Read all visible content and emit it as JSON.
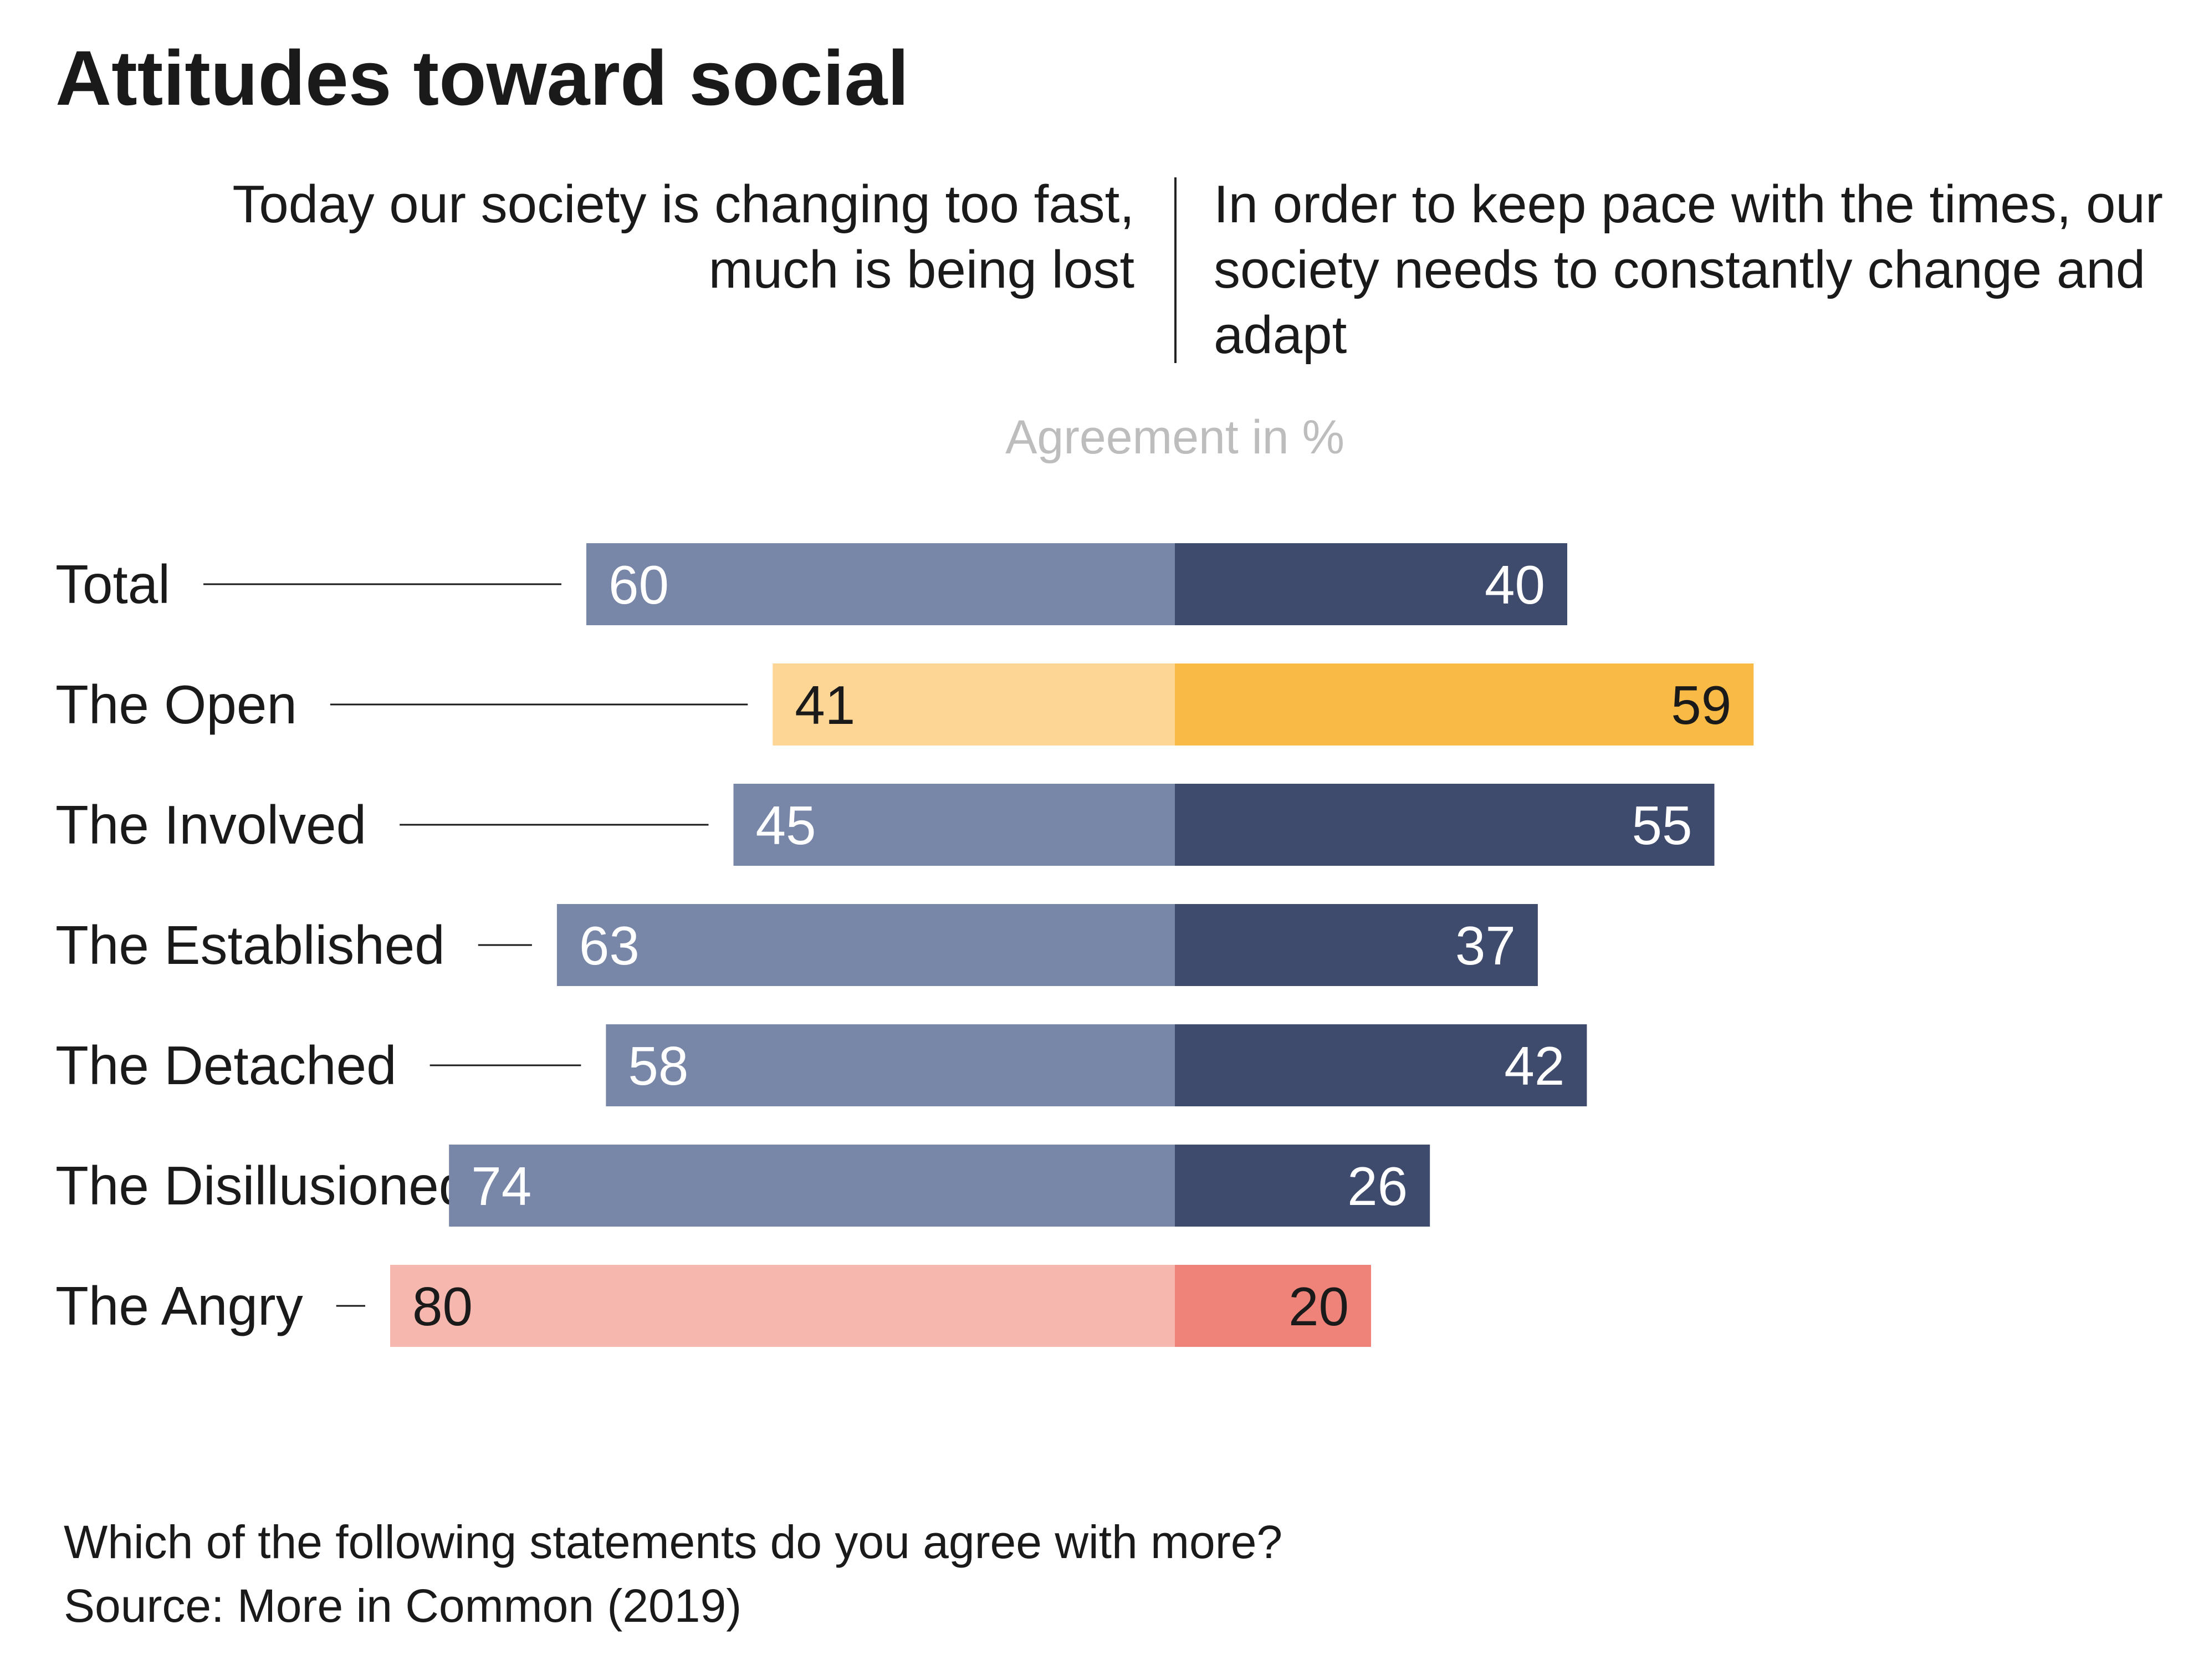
{
  "chart_data": {
    "type": "bar",
    "orientation": "horizontal-diverging",
    "title": "Attitudes toward social",
    "statement_left": "Today our society is changing too fast, much is being lost",
    "statement_right": "In order to keep pace with the times, our society needs to constantly change and adapt",
    "axis_caption": "Agreement in %",
    "categories": [
      "Total",
      "The Open",
      "The Involved",
      "The Established",
      "The Detached",
      "The Disillusioned",
      "The Angry"
    ],
    "series": [
      {
        "name": "Today our society is changing too fast, much is being lost",
        "values": [
          60,
          41,
          45,
          63,
          58,
          74,
          80
        ]
      },
      {
        "name": "In order to keep pace with the times, our society needs to constantly change and adapt",
        "values": [
          40,
          59,
          55,
          37,
          42,
          26,
          20
        ]
      }
    ],
    "colors": {
      "left": [
        "#7886a8",
        "#fdd594",
        "#7886a8",
        "#7886a8",
        "#7886a8",
        "#7886a8",
        "#f6b8ae"
      ],
      "right": [
        "#3e4b6c",
        "#f9bb45",
        "#3e4b6c",
        "#3e4b6c",
        "#3e4b6c",
        "#3e4b6c",
        "#ef837a"
      ],
      "label_left": [
        "#ffffff",
        "#1a1a1a",
        "#ffffff",
        "#ffffff",
        "#ffffff",
        "#ffffff",
        "#1a1a1a"
      ],
      "label_right": [
        "#ffffff",
        "#1a1a1a",
        "#ffffff",
        "#ffffff",
        "#ffffff",
        "#ffffff",
        "#1a1a1a"
      ]
    },
    "xlim": [
      -100,
      100
    ]
  },
  "footer": {
    "question": "Which of the following statements do you agree with more?",
    "source": "Source: More in Common (2019)"
  }
}
